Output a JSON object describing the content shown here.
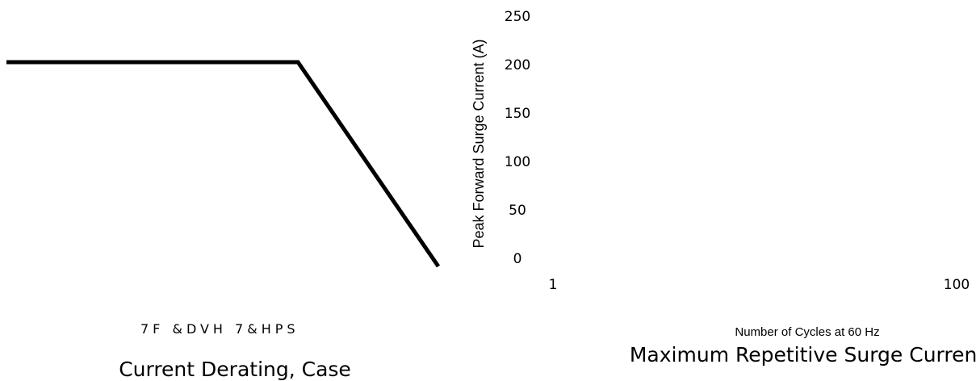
{
  "chart_data": [
    {
      "type": "line",
      "title": "Current Derating, Case",
      "xlabel": "7F &DVH 7&HPS",
      "ylabel": "",
      "series": [
        {
          "points": [
            [
              0,
              1
            ],
            [
              0.675,
              1
            ],
            [
              1,
              0
            ]
          ]
        }
      ]
    },
    {
      "type": "line",
      "title": "Maximum Repetitive Surge Current",
      "xlabel": "Number of Cycles at 60 Hz",
      "ylabel": "Peak Forward Surge Current (A)",
      "ylim": [
        0,
        250
      ],
      "yticks": [
        "0",
        "50",
        "100",
        "150",
        "200",
        "250"
      ],
      "xscale": "log",
      "xticks": [
        "1",
        "100"
      ],
      "series": []
    }
  ]
}
